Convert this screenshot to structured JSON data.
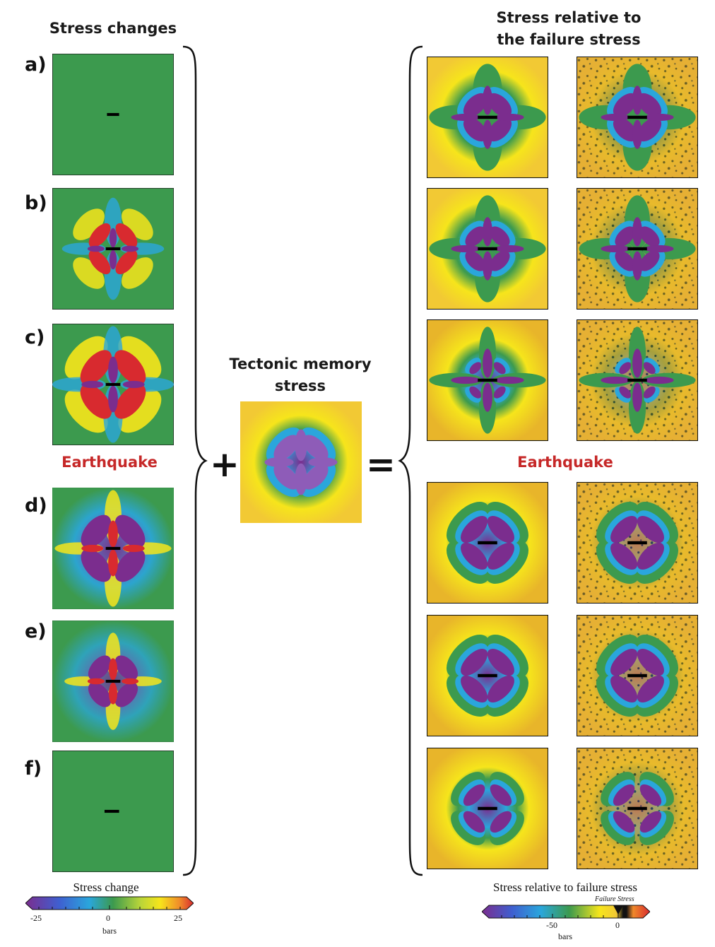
{
  "headings": {
    "stress_changes": "Stress changes",
    "relative": "Stress relative to the failure stress",
    "tectonic": "Tectonic memory stress",
    "earthquake_left": "Earthquake",
    "earthquake_right": "Earthquake"
  },
  "row_labels": [
    "a)",
    "b)",
    "c)",
    "d)",
    "e)",
    "f)"
  ],
  "operators": {
    "plus": "+",
    "equals": "="
  },
  "colorbar_left": {
    "title": "Stress change",
    "ticks": [
      "-25",
      "0",
      "25"
    ],
    "unit": "bars"
  },
  "colorbar_right": {
    "title": "Stress relative to failure stress",
    "ticks": [
      "-50",
      "0"
    ],
    "unit": "bars",
    "marker_label": "Failure Stress"
  },
  "colors": {
    "purple": "#7b2d8e",
    "blue": "#2aa6dc",
    "green": "#3c9a4e",
    "yellow": "#f6e51b",
    "orange": "#e8b52a",
    "red": "#d82a2f",
    "earthquake": "#c62828"
  }
}
